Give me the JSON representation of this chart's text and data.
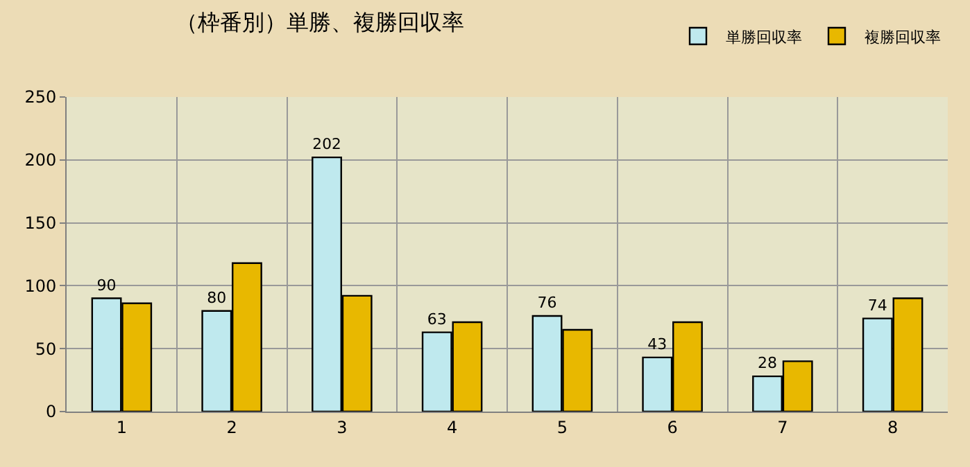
{
  "chart_data": {
    "type": "bar",
    "title": "（枠番別）単勝、複勝回収率",
    "categories": [
      "1",
      "2",
      "3",
      "4",
      "5",
      "6",
      "7",
      "8"
    ],
    "series": [
      {
        "name": "単勝回収率",
        "color": "#bfe9ee",
        "values": [
          90,
          80,
          202,
          63,
          76,
          43,
          28,
          74
        ],
        "value_labels": [
          "90",
          "80",
          "202",
          "63",
          "76",
          "43",
          "28",
          "74"
        ]
      },
      {
        "name": "複勝回収率",
        "color": "#e8b800",
        "values": [
          86,
          118,
          92,
          71,
          65,
          71,
          40,
          90
        ]
      }
    ],
    "ylim": [
      0,
      250
    ],
    "yticks": [
      0,
      50,
      100,
      150,
      200,
      250
    ],
    "grid": true,
    "legend": "top right"
  }
}
